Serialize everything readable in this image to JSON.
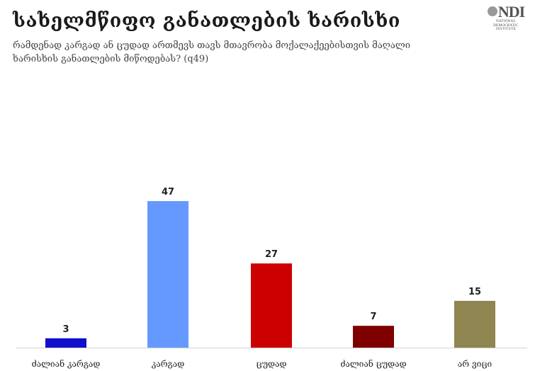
{
  "title": "სახელმწიფო განათლების ხარისხი",
  "subtitle": "რამდენად კარგად ან ცუდად ართმევს თავს მთავრობა მოქალაქეებისთვის მაღალი ხარისხის განათლების მიწოდებას? (q49)",
  "logo": {
    "mark": "NDI",
    "line1": "NATIONAL",
    "line2": "DEMOCRATIC",
    "line3": "INSTITUTE"
  },
  "colors": {
    "bar1": "#1010cc",
    "bar2": "#6699ff",
    "bar3": "#cc0000",
    "bar4": "#7f0000",
    "bar5": "#8f8550"
  },
  "chart_data": {
    "type": "bar",
    "categories": [
      "ძალიან კარგად",
      "კარგად",
      "ცუდად",
      "ძალიან ცუდად",
      "არ ვიცი"
    ],
    "values": [
      3,
      47,
      27,
      7,
      15
    ],
    "value_labels": [
      "3",
      "47",
      "27",
      "7",
      "15"
    ],
    "ylim": [
      0,
      60
    ],
    "grid": false,
    "legend": "none"
  }
}
